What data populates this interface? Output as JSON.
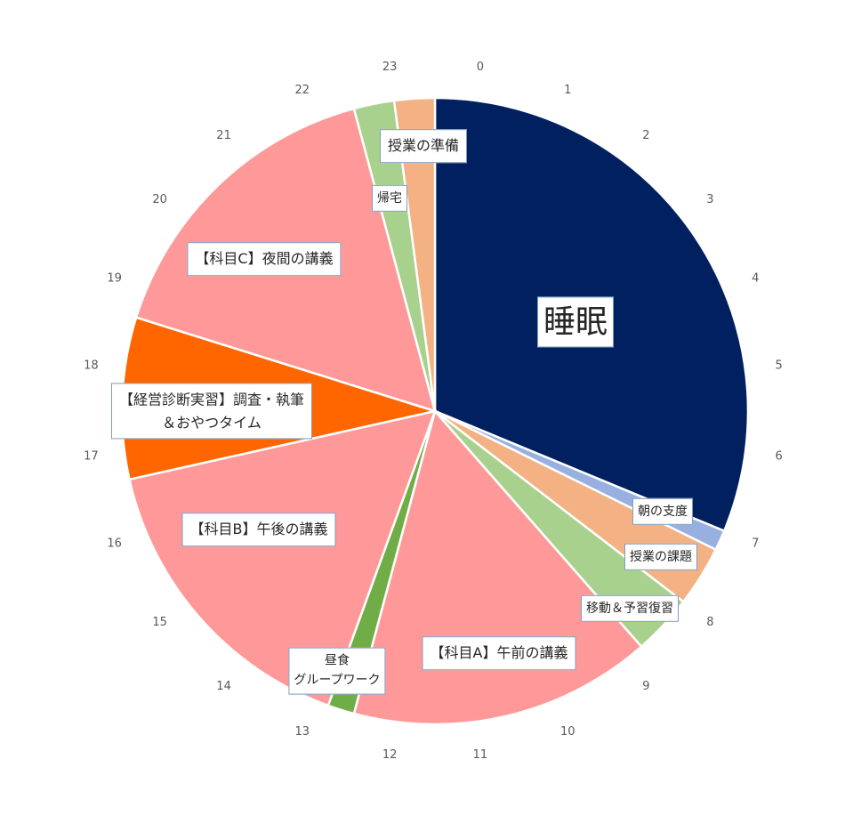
{
  "chart_data": {
    "type": "pie",
    "categories": [
      "睡眠",
      "朝の支度",
      "授業の課題",
      "移動＆予習復習",
      "【科目A】午前の講義",
      "昼食\nグループワーク",
      "【科目B】午後の講義",
      "【経営診断実習】調査・執筆\n＆おやつタイム",
      "【科目C】夜間の講義",
      "帰宅",
      "授業の準備"
    ],
    "values": [
      7.5,
      0.25,
      0.75,
      0.75,
      3.75,
      0.33,
      3.83,
      2,
      3.84,
      0.5,
      0.5
    ],
    "colors": [
      "#002060",
      "#97b0e0",
      "#f4b183",
      "#a9d18e",
      "#ff9999",
      "#70ad47",
      "#ff9999",
      "#ff6600",
      "#ff9999",
      "#a9d18e",
      "#f4b183"
    ],
    "hour_labels": [
      0,
      1,
      2,
      3,
      4,
      5,
      6,
      7,
      8,
      9,
      10,
      11,
      12,
      13,
      14,
      15,
      16,
      17,
      18,
      19,
      20,
      21,
      22,
      23
    ]
  }
}
